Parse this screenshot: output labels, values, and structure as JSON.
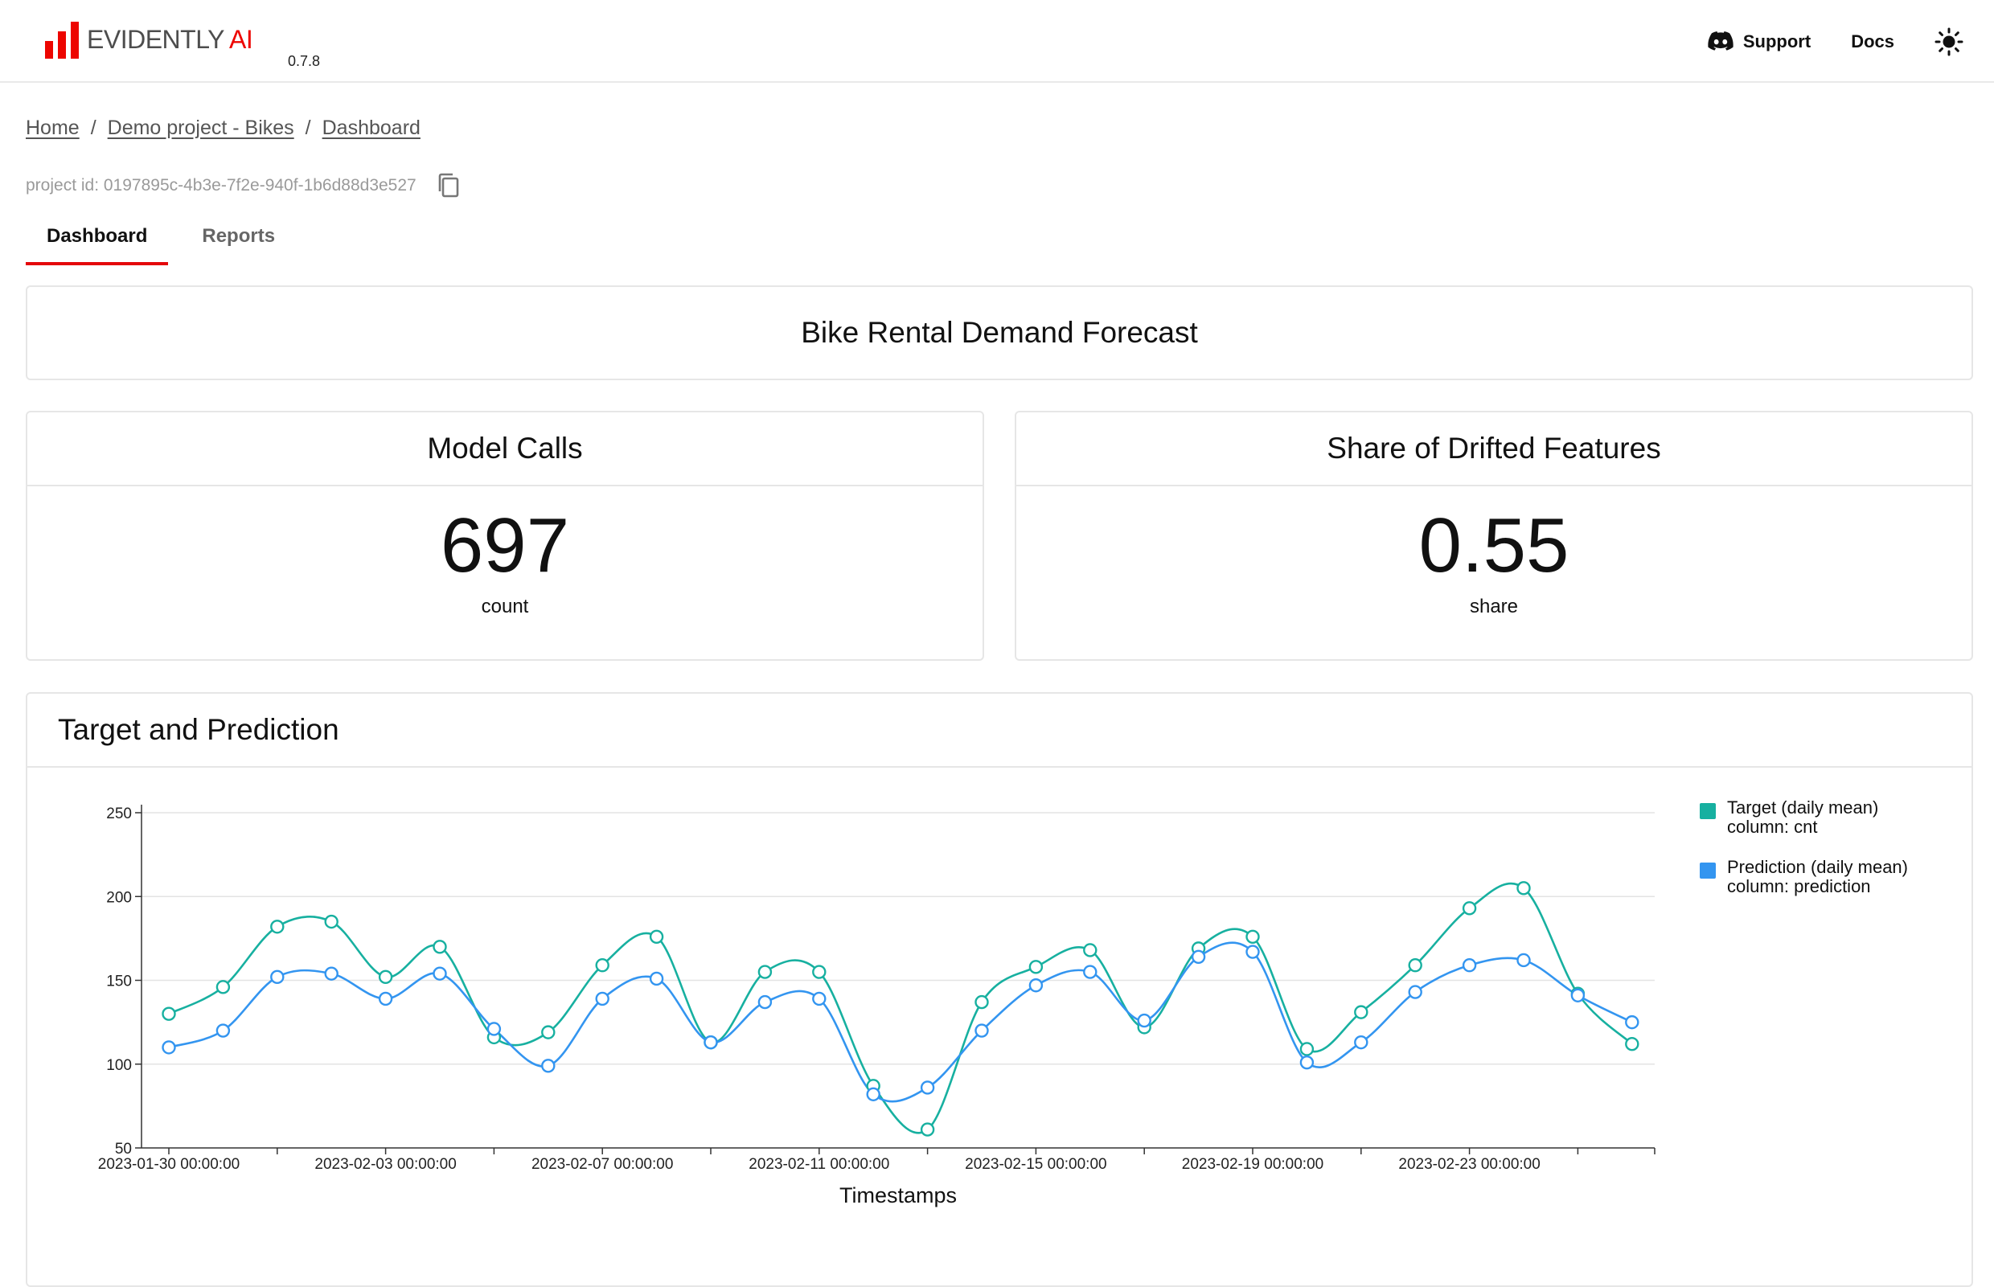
{
  "header": {
    "logo_text": "EVIDENTLY",
    "logo_accent": "AI",
    "version": "0.7.8",
    "support_label": "Support",
    "docs_label": "Docs",
    "brand_color": "#ed0500",
    "support_icon": "discord-icon",
    "theme_icon": "sun-icon"
  },
  "breadcrumb": {
    "home": "Home",
    "project": "Demo project - Bikes",
    "page": "Dashboard",
    "separator": "/"
  },
  "project": {
    "id_text": "project id: 0197895c-4b3e-7f2e-940f-1b6d88d3e527",
    "copy_icon": "copy-icon"
  },
  "tabs": [
    {
      "label": "Dashboard",
      "active": true
    },
    {
      "label": "Reports",
      "active": false
    }
  ],
  "dashboard_title": "Bike Rental Demand Forecast",
  "counters": [
    {
      "title": "Model Calls",
      "value": "697",
      "label": "count"
    },
    {
      "title": "Share of Drifted Features",
      "value": "0.55",
      "label": "share"
    }
  ],
  "chart_panel_title": "Target and Prediction",
  "chart_data": {
    "type": "line",
    "title": "Target and Prediction",
    "xlabel": "Timestamps",
    "ylabel": "",
    "ylim": [
      50,
      250
    ],
    "yticks": [
      50,
      100,
      150,
      200,
      250
    ],
    "grid": true,
    "legend_position": "right",
    "x": [
      "2023-01-30",
      "2023-01-31",
      "2023-02-01",
      "2023-02-02",
      "2023-02-03",
      "2023-02-04",
      "2023-02-05",
      "2023-02-06",
      "2023-02-07",
      "2023-02-08",
      "2023-02-09",
      "2023-02-10",
      "2023-02-11",
      "2023-02-12",
      "2023-02-13",
      "2023-02-14",
      "2023-02-15",
      "2023-02-16",
      "2023-02-17",
      "2023-02-18",
      "2023-02-19",
      "2023-02-20",
      "2023-02-21",
      "2023-02-22",
      "2023-02-23",
      "2023-02-24",
      "2023-02-25",
      "2023-02-26"
    ],
    "xtick_labels": [
      "2023-01-30 00:00:00",
      "2023-02-03 00:00:00",
      "2023-02-07 00:00:00",
      "2023-02-11 00:00:00",
      "2023-02-15 00:00:00",
      "2023-02-19 00:00:00",
      "2023-02-23 00:00:00"
    ],
    "series": [
      {
        "name": "Target (daily mean)",
        "name_line2": "column: cnt",
        "color": "#17b0a0",
        "values": [
          130,
          146,
          182,
          185,
          152,
          170,
          116,
          119,
          159,
          176,
          113,
          155,
          155,
          87,
          61,
          137,
          158,
          168,
          122,
          169,
          176,
          109,
          131,
          159,
          193,
          205,
          142,
          112
        ]
      },
      {
        "name": "Prediction (daily mean)",
        "name_line2": "column: prediction",
        "color": "#3395f0",
        "values": [
          110,
          120,
          152,
          154,
          139,
          154,
          121,
          99,
          139,
          151,
          113,
          137,
          139,
          82,
          86,
          120,
          147,
          155,
          126,
          164,
          167,
          101,
          113,
          143,
          159,
          162,
          141,
          125
        ]
      }
    ]
  }
}
